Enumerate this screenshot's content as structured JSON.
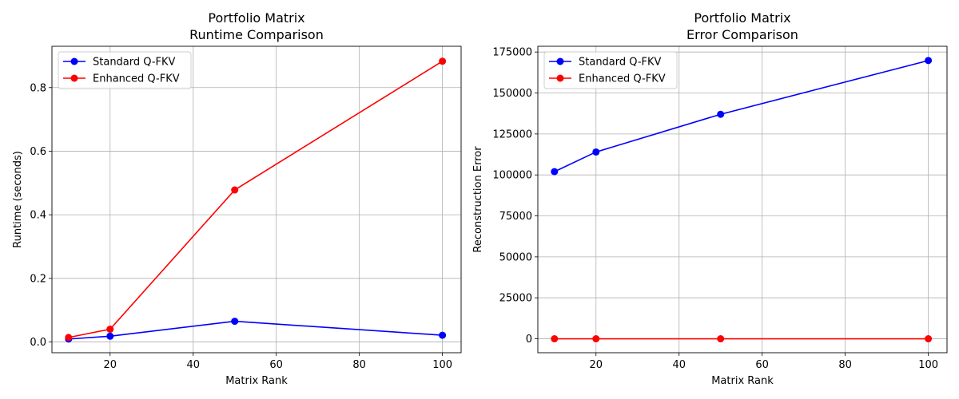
{
  "chart_data": [
    {
      "type": "line",
      "title": "Portfolio Matrix\nRuntime Comparison",
      "xlabel": "Matrix Rank",
      "ylabel": "Runtime (seconds)",
      "x": [
        10,
        20,
        50,
        100
      ],
      "xlim": [
        6,
        104.5
      ],
      "ylim": [
        -0.034,
        0.93
      ],
      "xticks": [
        20,
        40,
        60,
        80,
        100
      ],
      "yticks": [
        0.0,
        0.2,
        0.4,
        0.6,
        0.8
      ],
      "ytick_decimals": 1,
      "grid": true,
      "legend": "top-left",
      "series": [
        {
          "name": "Standard Q-FKV",
          "color": "#0000ff",
          "values": [
            0.009,
            0.018,
            0.065,
            0.021
          ]
        },
        {
          "name": "Enhanced Q-FKV",
          "color": "#ff0000",
          "values": [
            0.014,
            0.04,
            0.478,
            0.883
          ]
        }
      ]
    },
    {
      "type": "line",
      "title": "Portfolio Matrix\nError Comparison",
      "xlabel": "Matrix Rank",
      "ylabel": "Reconstruction Error",
      "x": [
        10,
        20,
        50,
        100
      ],
      "xlim": [
        6,
        104.5
      ],
      "ylim": [
        -8500,
        178500
      ],
      "xticks": [
        20,
        40,
        60,
        80,
        100
      ],
      "yticks": [
        0,
        25000,
        50000,
        75000,
        100000,
        125000,
        150000,
        175000
      ],
      "ytick_decimals": 0,
      "grid": true,
      "legend": "top-left",
      "series": [
        {
          "name": "Standard Q-FKV",
          "color": "#0000ff",
          "values": [
            102000,
            114000,
            137000,
            169800
          ]
        },
        {
          "name": "Enhanced Q-FKV",
          "color": "#ff0000",
          "values": [
            0,
            0,
            0,
            0
          ]
        }
      ]
    }
  ]
}
